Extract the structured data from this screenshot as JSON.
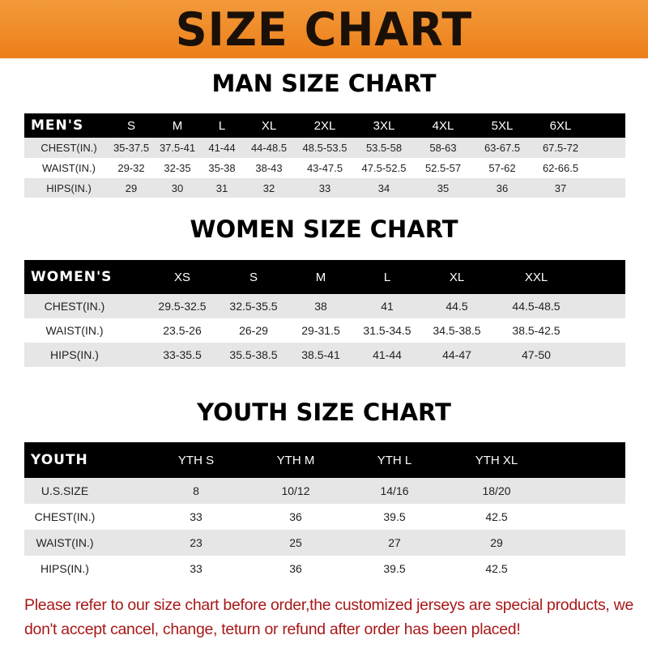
{
  "banner": "SIZE CHART",
  "men": {
    "title": "MAN SIZE CHART",
    "header": [
      "MEN'S",
      "S",
      "M",
      "L",
      "XL",
      "2XL",
      "3XL",
      "4XL",
      "5XL",
      "6XL"
    ],
    "rows": [
      [
        "CHEST(IN.)",
        "35-37.5",
        "37.5-41",
        "41-44",
        "44-48.5",
        "48.5-53.5",
        "53.5-58",
        "58-63",
        "63-67.5",
        "67.5-72"
      ],
      [
        "WAIST(IN.)",
        "29-32",
        "32-35",
        "35-38",
        "38-43",
        "43-47.5",
        "47.5-52.5",
        "52.5-57",
        "57-62",
        "62-66.5"
      ],
      [
        "HIPS(IN.)",
        "29",
        "30",
        "31",
        "32",
        "33",
        "34",
        "35",
        "36",
        "37"
      ]
    ]
  },
  "women": {
    "title": "WOMEN SIZE CHART",
    "header": [
      "WOMEN'S",
      "XS",
      "S",
      "M",
      "L",
      "XL",
      "XXL"
    ],
    "rows": [
      [
        "CHEST(IN.)",
        "29.5-32.5",
        "32.5-35.5",
        "38",
        "41",
        "44.5",
        "44.5-48.5"
      ],
      [
        "WAIST(IN.)",
        "23.5-26",
        "26-29",
        "29-31.5",
        "31.5-34.5",
        "34.5-38.5",
        "38.5-42.5"
      ],
      [
        "HIPS(IN.)",
        "33-35.5",
        "35.5-38.5",
        "38.5-41",
        "41-44",
        "44-47",
        "47-50"
      ]
    ]
  },
  "youth": {
    "title": "YOUTH SIZE CHART",
    "header": [
      "YOUTH",
      "YTH S",
      "YTH M",
      "YTH L",
      "YTH XL"
    ],
    "rows": [
      [
        "U.S.SIZE",
        "8",
        "10/12",
        "14/16",
        "18/20"
      ],
      [
        "CHEST(IN.)",
        "33",
        "36",
        "39.5",
        "42.5"
      ],
      [
        "WAIST(IN.)",
        "23",
        "25",
        "27",
        "29"
      ],
      [
        "HIPS(IN.)",
        "33",
        "36",
        "39.5",
        "42.5"
      ]
    ]
  },
  "note": "Please refer to our size chart before order,the customized jerseys are special products, we don't accept cancel, change, teturn or refund after order has been placed!",
  "colors": {
    "banner": "#ef8a24",
    "header": "#000000",
    "stripe": "#e6e6e6",
    "note": "#a81818"
  }
}
